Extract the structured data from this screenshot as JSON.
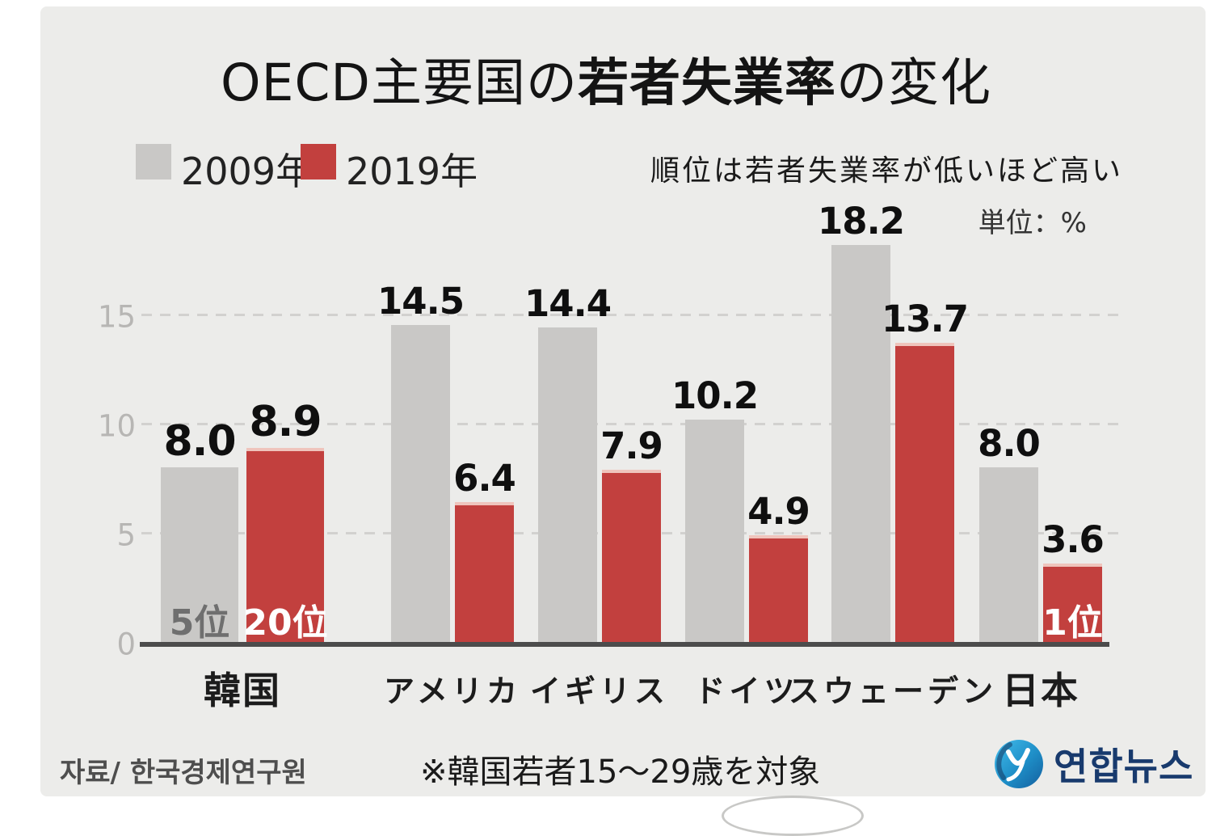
{
  "title": {
    "prefix": "OECD主要国の",
    "emphasis": "若者失業率",
    "suffix": "の変化"
  },
  "legend": {
    "items": [
      {
        "label": "2009年",
        "color": "#c9c8c6"
      },
      {
        "label": "2019年",
        "color": "#c2403e"
      }
    ]
  },
  "notes": {
    "rank_note": "順位は若者失業率が低いほど高い",
    "unit_note": "単位：%"
  },
  "chart_data": {
    "type": "bar",
    "categories": [
      "韓国",
      "アメリカ",
      "イギリス",
      "ドイツ",
      "スウェーデン",
      "日本"
    ],
    "series": [
      {
        "name": "2009年",
        "color": "#c9c8c6",
        "values": [
          8.0,
          14.5,
          14.4,
          10.2,
          18.2,
          8.0
        ]
      },
      {
        "name": "2019年",
        "color": "#c2403e",
        "values": [
          8.9,
          6.4,
          7.9,
          4.9,
          13.7,
          3.6
        ]
      }
    ],
    "rank_labels": [
      {
        "category": "韓国",
        "series": "2009年",
        "label": "5位"
      },
      {
        "category": "韓国",
        "series": "2019年",
        "label": "20位"
      },
      {
        "category": "日本",
        "series": "2019年",
        "label": "1位"
      }
    ],
    "title": "OECD主要国の若者失業率の変化",
    "xlabel": "",
    "ylabel": "",
    "unit": "%",
    "yticks": [
      0,
      5,
      10,
      15
    ],
    "ylim": [
      0,
      19.5
    ],
    "grid": "dashed-horizontal",
    "legend_position": "top-left"
  },
  "footer": {
    "source": "자료/ 한국경제연구원",
    "note": "※韓国若者15～29歳を対象",
    "logo_text": "연합뉴스"
  }
}
